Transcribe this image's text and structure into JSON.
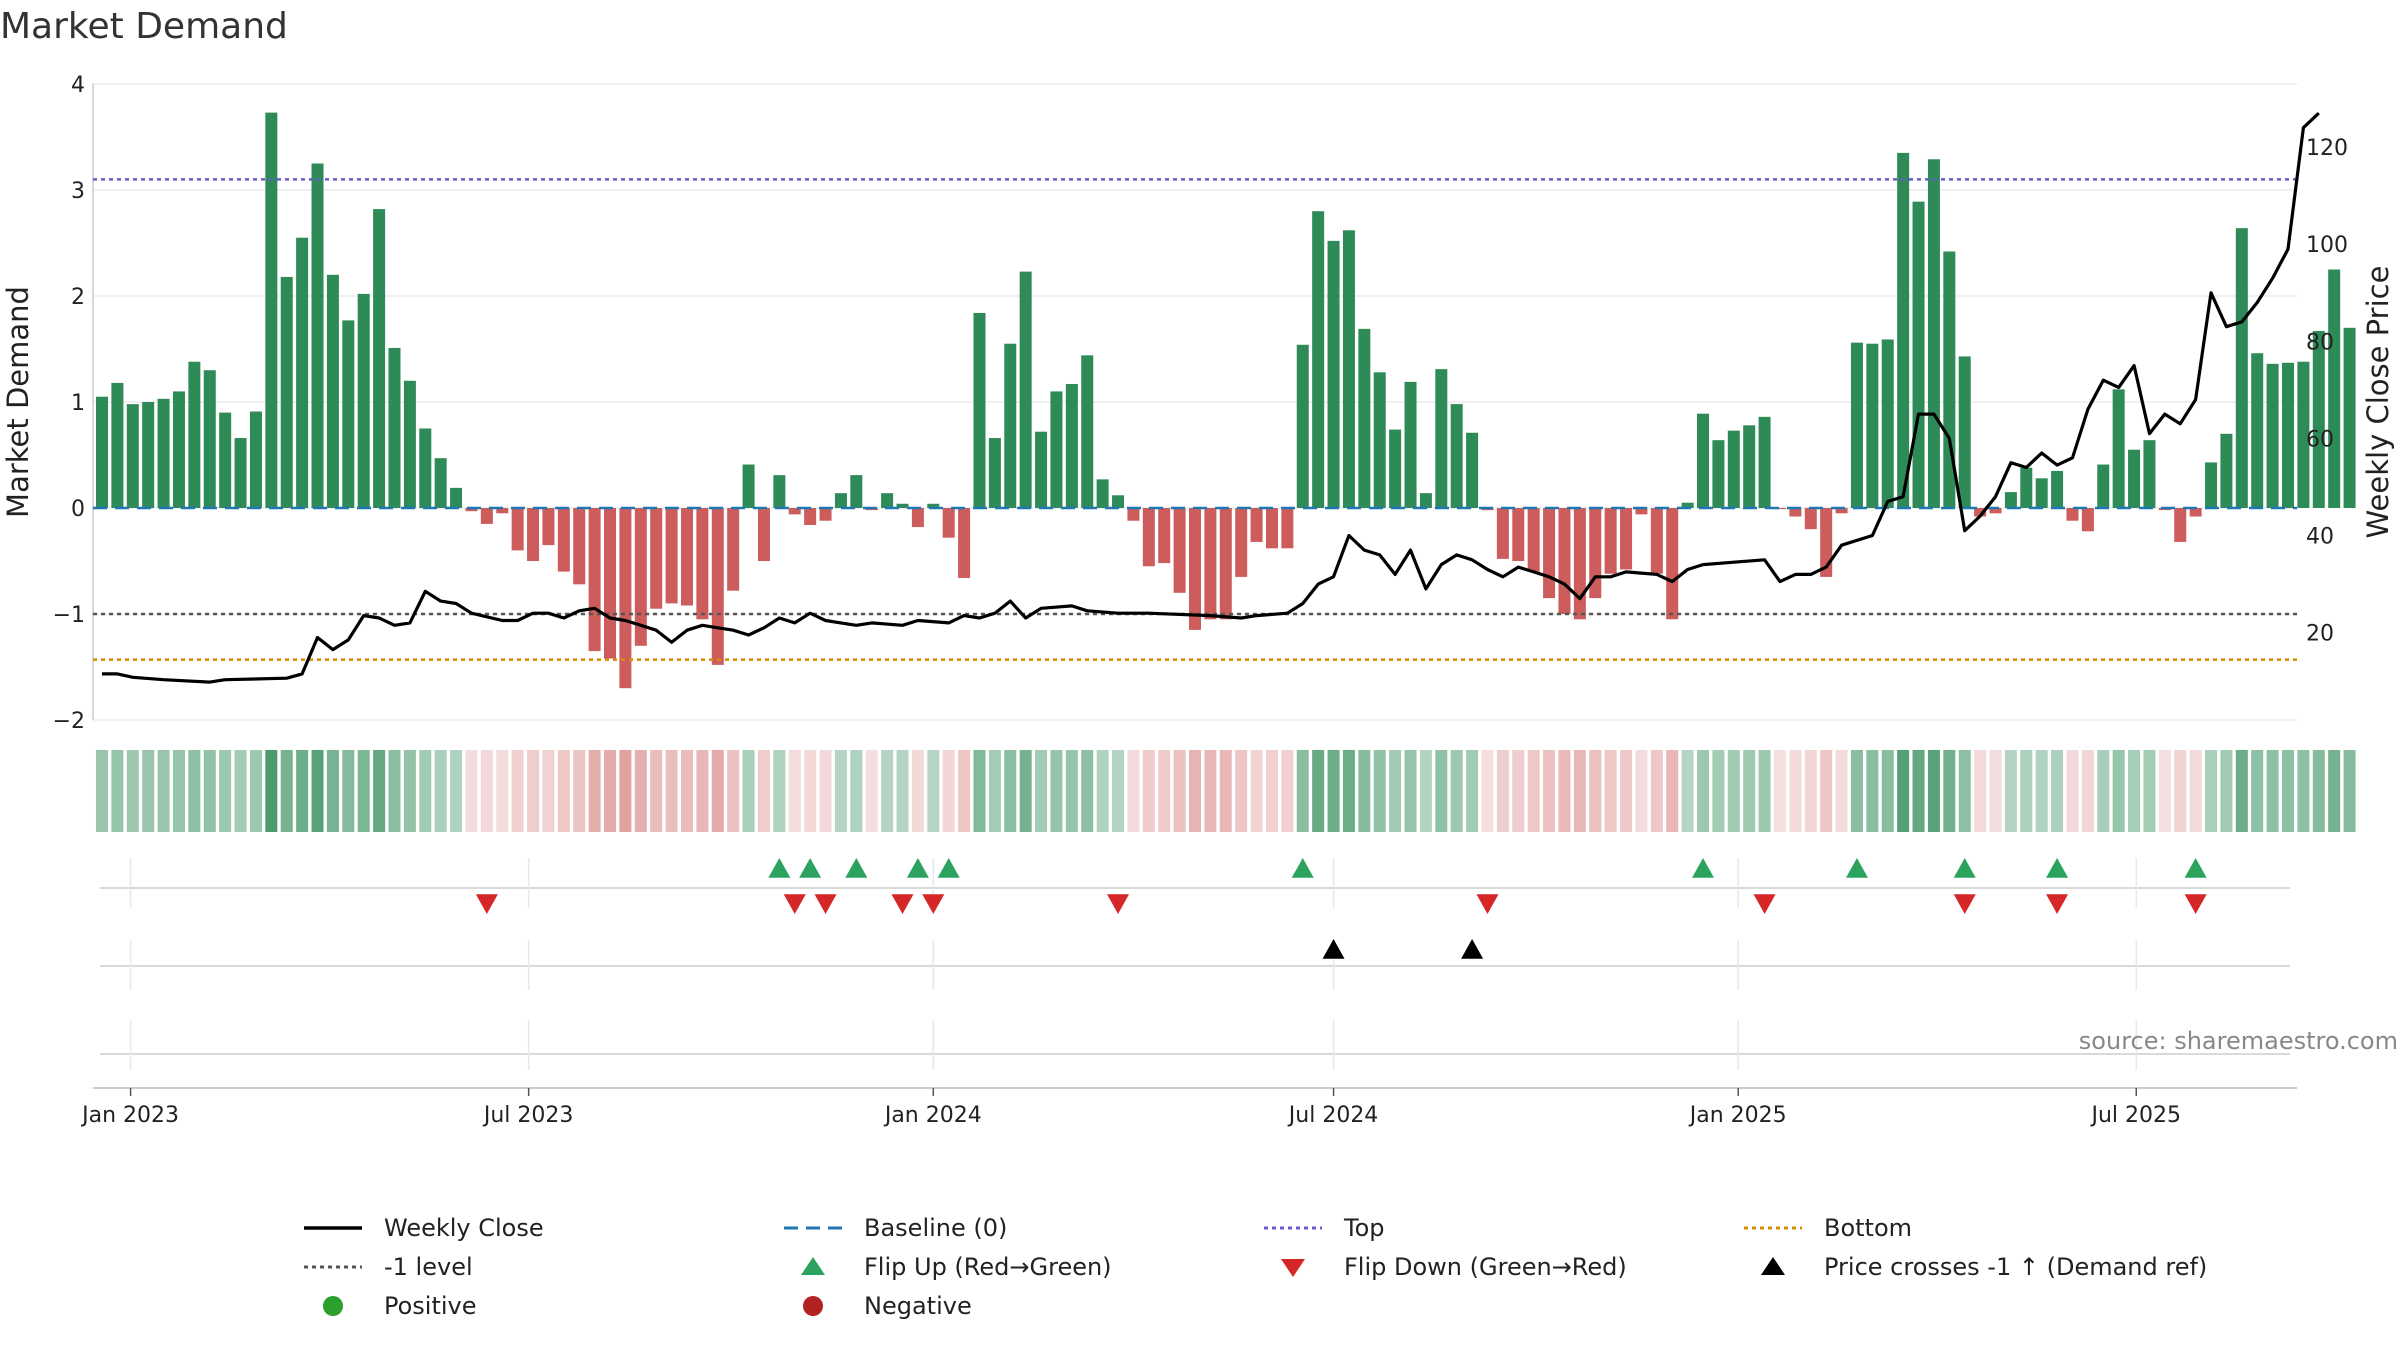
{
  "title": "Market Demand",
  "source_note": "source: sharemaestro.com",
  "colors": {
    "positive": "#2e8b57",
    "negative": "#cd5c5c",
    "price_line": "#000000",
    "baseline": "#1f77b4",
    "top_line": "#6a5acd",
    "minus1_line": "#555555",
    "bottom_line": "#d98c00",
    "flip_up": "#2ca25f",
    "flip_down": "#d62728",
    "cross_marker": "#000000",
    "legend_positive": "#2ca02c",
    "legend_negative": "#b22222"
  },
  "legend": [
    {
      "key": "weekly_close",
      "label": "Weekly Close",
      "swatch": "solid-line"
    },
    {
      "key": "baseline",
      "label": "Baseline (0)",
      "swatch": "dashed-line"
    },
    {
      "key": "top",
      "label": "Top",
      "swatch": "dotted-line"
    },
    {
      "key": "bottom",
      "label": "Bottom",
      "swatch": "dotted-line"
    },
    {
      "key": "minus1",
      "label": "-1 level",
      "swatch": "dotted-line"
    },
    {
      "key": "flip_up",
      "label": "Flip Up (Red→Green)",
      "swatch": "triangle-up"
    },
    {
      "key": "flip_down",
      "label": "Flip Down (Green→Red)",
      "swatch": "triangle-down"
    },
    {
      "key": "cross",
      "label": "Price crosses -1 ↑ (Demand ref)",
      "swatch": "triangle-up"
    },
    {
      "key": "positive",
      "label": "Positive",
      "swatch": "circle"
    },
    {
      "key": "negative",
      "label": "Negative",
      "swatch": "circle"
    }
  ],
  "chart_data": {
    "type": "bar",
    "title": "Market Demand",
    "xlabel": "",
    "ylabel": "Market Demand",
    "ylabel_right": "Weekly Close Price",
    "ylim": [
      -2,
      4
    ],
    "y2lim": [
      2,
      133
    ],
    "yticks": [
      -2,
      -1,
      0,
      1,
      2,
      3,
      4
    ],
    "yticks_labels": [
      "−2",
      "−1",
      "0",
      "1",
      "2",
      "3",
      "4"
    ],
    "y2ticks": [
      20,
      40,
      60,
      80,
      100,
      120
    ],
    "x_start": "2022-12-19",
    "x_end": "2025-09-08",
    "x_ticks": [
      {
        "date": "2023-01-01",
        "label": "Jan 2023"
      },
      {
        "date": "2023-07-01",
        "label": "Jul 2023"
      },
      {
        "date": "2024-01-01",
        "label": "Jan 2024"
      },
      {
        "date": "2024-07-01",
        "label": "Jul 2024"
      },
      {
        "date": "2025-01-01",
        "label": "Jan 2025"
      },
      {
        "date": "2025-07-01",
        "label": "Jul 2025"
      }
    ],
    "reference_lines": {
      "baseline": 0,
      "top": 3.1,
      "minus1": -1.0,
      "bottom": -1.43
    },
    "demand_first_week": "2022-12-19",
    "demand": [
      1.05,
      1.18,
      0.98,
      1.0,
      1.03,
      1.1,
      1.38,
      1.3,
      0.9,
      0.66,
      0.91,
      3.73,
      2.18,
      2.55,
      3.25,
      2.2,
      1.77,
      2.02,
      2.82,
      1.51,
      1.2,
      0.75,
      0.47,
      0.19,
      -0.03,
      -0.15,
      -0.05,
      -0.4,
      -0.5,
      -0.35,
      -0.6,
      -0.72,
      -1.35,
      -1.42,
      -1.7,
      -1.3,
      -0.95,
      -0.9,
      -0.92,
      -1.05,
      -1.48,
      -0.78,
      0.41,
      -0.5,
      0.31,
      -0.06,
      -0.16,
      -0.12,
      0.14,
      0.31,
      -0.02,
      0.14,
      0.04,
      -0.18,
      0.04,
      -0.28,
      -0.66,
      1.84,
      0.66,
      1.55,
      2.23,
      0.72,
      1.1,
      1.17,
      1.44,
      0.27,
      0.12,
      -0.12,
      -0.55,
      -0.52,
      -0.8,
      -1.15,
      -1.05,
      -1.05,
      -0.65,
      -0.32,
      -0.38,
      -0.38,
      1.54,
      2.8,
      2.52,
      2.62,
      1.69,
      1.28,
      0.74,
      1.19,
      0.14,
      1.31,
      0.98,
      0.71,
      -0.02,
      -0.48,
      -0.5,
      -0.6,
      -0.85,
      -1.0,
      -1.05,
      -0.85,
      -0.62,
      -0.58,
      -0.06,
      -0.62,
      -1.05,
      0.05,
      0.89,
      0.64,
      0.73,
      0.78,
      0.86,
      -0.01,
      -0.08,
      -0.2,
      -0.65,
      -0.05,
      1.56,
      1.55,
      1.59,
      3.35,
      2.89,
      3.29,
      2.42,
      1.43,
      -0.08,
      -0.05,
      0.15,
      0.38,
      0.28,
      0.35,
      -0.12,
      -0.22,
      0.41,
      1.12,
      0.55,
      0.64,
      -0.02,
      -0.32,
      -0.08,
      0.43,
      0.7,
      2.64,
      1.46,
      1.36,
      1.37,
      1.38,
      1.67,
      2.25,
      1.7
    ],
    "price": [
      [
        "2022-12-19",
        11.5
      ],
      [
        "2022-12-26",
        11.5
      ],
      [
        "2023-01-02",
        10.8
      ],
      [
        "2023-01-16",
        10.3
      ],
      [
        "2023-02-06",
        9.8
      ],
      [
        "2023-02-13",
        10.3
      ],
      [
        "2023-03-13",
        10.6
      ],
      [
        "2023-03-20",
        11.5
      ],
      [
        "2023-03-27",
        19.0
      ],
      [
        "2023-04-03",
        16.5
      ],
      [
        "2023-04-10",
        18.5
      ],
      [
        "2023-04-17",
        23.5
      ],
      [
        "2023-04-24",
        23.0
      ],
      [
        "2023-05-01",
        21.5
      ],
      [
        "2023-05-08",
        22.0
      ],
      [
        "2023-05-15",
        28.5
      ],
      [
        "2023-05-22",
        26.5
      ],
      [
        "2023-05-29",
        26.0
      ],
      [
        "2023-06-05",
        24.0
      ],
      [
        "2023-06-19",
        22.5
      ],
      [
        "2023-06-26",
        22.5
      ],
      [
        "2023-07-03",
        24.0
      ],
      [
        "2023-07-10",
        24.0
      ],
      [
        "2023-07-17",
        23.0
      ],
      [
        "2023-07-24",
        24.5
      ],
      [
        "2023-07-31",
        25.0
      ],
      [
        "2023-08-07",
        23.0
      ],
      [
        "2023-08-14",
        22.5
      ],
      [
        "2023-08-21",
        21.5
      ],
      [
        "2023-08-28",
        20.5
      ],
      [
        "2023-09-04",
        18.0
      ],
      [
        "2023-09-11",
        20.5
      ],
      [
        "2023-09-18",
        21.5
      ],
      [
        "2023-09-25",
        21.0
      ],
      [
        "2023-10-02",
        20.5
      ],
      [
        "2023-10-09",
        19.5
      ],
      [
        "2023-10-16",
        21.0
      ],
      [
        "2023-10-23",
        23.0
      ],
      [
        "2023-10-30",
        22.0
      ],
      [
        "2023-11-06",
        24.0
      ],
      [
        "2023-11-13",
        22.5
      ],
      [
        "2023-11-20",
        22.0
      ],
      [
        "2023-11-27",
        21.5
      ],
      [
        "2023-12-04",
        22.0
      ],
      [
        "2023-12-18",
        21.5
      ],
      [
        "2023-12-25",
        22.5
      ],
      [
        "2024-01-08",
        22.0
      ],
      [
        "2024-01-15",
        23.5
      ],
      [
        "2024-01-22",
        23.0
      ],
      [
        "2024-01-29",
        24.0
      ],
      [
        "2024-02-05",
        26.5
      ],
      [
        "2024-02-12",
        23.0
      ],
      [
        "2024-02-19",
        25.0
      ],
      [
        "2024-03-04",
        25.5
      ],
      [
        "2024-03-11",
        24.5
      ],
      [
        "2024-03-25",
        24.0
      ],
      [
        "2024-04-08",
        24.0
      ],
      [
        "2024-05-06",
        23.5
      ],
      [
        "2024-05-20",
        23.0
      ],
      [
        "2024-05-27",
        23.5
      ],
      [
        "2024-06-10",
        24.0
      ],
      [
        "2024-06-17",
        26.0
      ],
      [
        "2024-06-24",
        30.0
      ],
      [
        "2024-07-01",
        31.5
      ],
      [
        "2024-07-08",
        40.0
      ],
      [
        "2024-07-15",
        37.0
      ],
      [
        "2024-07-22",
        36.0
      ],
      [
        "2024-07-29",
        32.0
      ],
      [
        "2024-08-05",
        37.0
      ],
      [
        "2024-08-12",
        29.0
      ],
      [
        "2024-08-19",
        34.0
      ],
      [
        "2024-08-26",
        36.0
      ],
      [
        "2024-09-02",
        35.0
      ],
      [
        "2024-09-09",
        33.0
      ],
      [
        "2024-09-16",
        31.5
      ],
      [
        "2024-09-23",
        33.5
      ],
      [
        "2024-09-30",
        32.5
      ],
      [
        "2024-10-07",
        31.5
      ],
      [
        "2024-10-14",
        30.0
      ],
      [
        "2024-10-21",
        27.0
      ],
      [
        "2024-10-28",
        31.5
      ],
      [
        "2024-11-04",
        31.5
      ],
      [
        "2024-11-11",
        32.5
      ],
      [
        "2024-11-25",
        32.0
      ],
      [
        "2024-12-02",
        30.5
      ],
      [
        "2024-12-09",
        33.0
      ],
      [
        "2024-12-16",
        34.0
      ],
      [
        "2024-12-30",
        34.5
      ],
      [
        "2025-01-13",
        35.0
      ],
      [
        "2025-01-20",
        30.5
      ],
      [
        "2025-01-27",
        32.0
      ],
      [
        "2025-02-03",
        32.0
      ],
      [
        "2025-02-10",
        33.5
      ],
      [
        "2025-02-17",
        38.0
      ],
      [
        "2025-03-03",
        40.0
      ],
      [
        "2025-03-10",
        47.0
      ],
      [
        "2025-03-17",
        48.0
      ],
      [
        "2025-03-24",
        65.0
      ],
      [
        "2025-03-31",
        65.0
      ],
      [
        "2025-04-07",
        60.0
      ],
      [
        "2025-04-14",
        41.0
      ],
      [
        "2025-04-21",
        44.0
      ],
      [
        "2025-04-28",
        48.0
      ],
      [
        "2025-05-05",
        55.0
      ],
      [
        "2025-05-12",
        54.0
      ],
      [
        "2025-05-19",
        57.0
      ],
      [
        "2025-05-26",
        54.5
      ],
      [
        "2025-06-02",
        56.0
      ],
      [
        "2025-06-09",
        66.0
      ],
      [
        "2025-06-16",
        72.0
      ],
      [
        "2025-06-23",
        70.5
      ],
      [
        "2025-06-30",
        75.0
      ],
      [
        "2025-07-07",
        61.0
      ],
      [
        "2025-07-14",
        65.0
      ],
      [
        "2025-07-21",
        63.0
      ],
      [
        "2025-07-28",
        68.0
      ],
      [
        "2025-08-04",
        90.0
      ],
      [
        "2025-08-11",
        83.0
      ],
      [
        "2025-08-18",
        84.0
      ],
      [
        "2025-08-25",
        88.0
      ],
      [
        "2025-09-01",
        93.0
      ],
      [
        "2025-09-08",
        99.0
      ],
      [
        "2025-09-15",
        124.0
      ],
      [
        "2025-09-22",
        127.0
      ]
    ],
    "flip_up_dates": [
      "2023-10-23",
      "2023-11-06",
      "2023-11-27",
      "2023-12-25",
      "2024-01-08",
      "2024-06-17",
      "2024-12-16",
      "2025-02-24",
      "2025-04-14",
      "2025-05-26",
      "2025-07-28"
    ],
    "flip_down_dates": [
      "2023-06-12",
      "2023-10-30",
      "2023-11-13",
      "2023-12-18",
      "2024-01-01",
      "2024-03-25",
      "2024-09-09",
      "2025-01-13",
      "2025-04-14",
      "2025-05-26",
      "2025-07-28"
    ],
    "price_cross_dates": [
      "2024-07-01",
      "2024-09-02"
    ]
  }
}
